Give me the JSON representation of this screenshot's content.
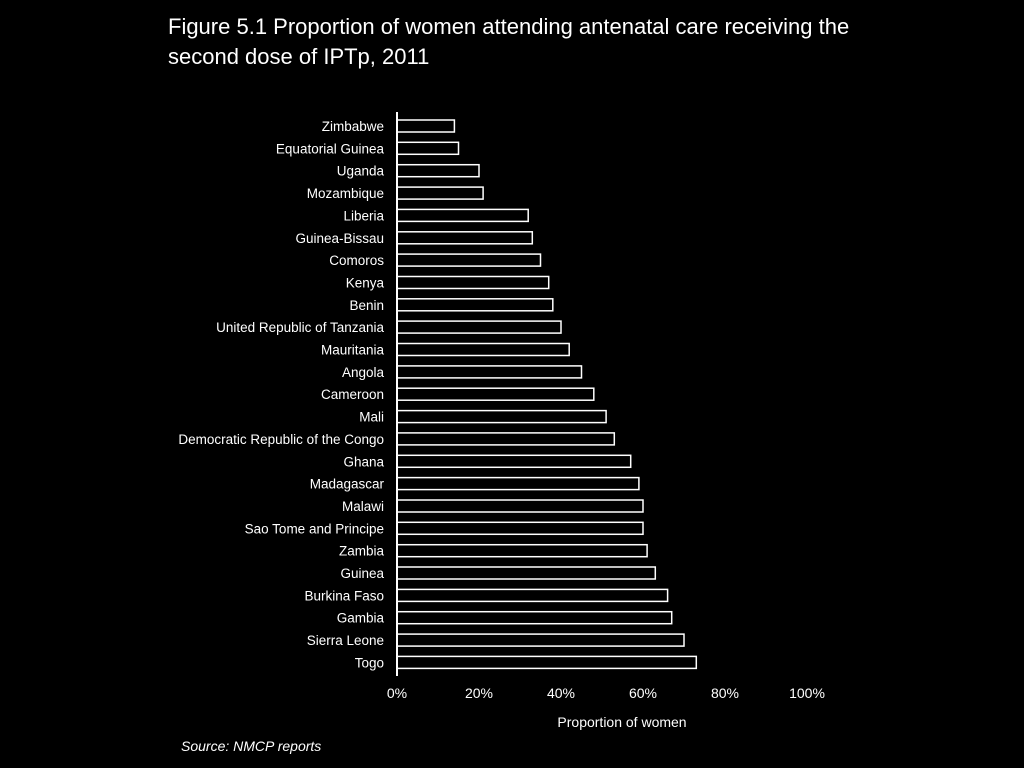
{
  "chart_data": {
    "type": "bar",
    "orientation": "horizontal",
    "title": "Figure 5.1 Proportion of women attending antenatal care receiving the second dose of IPTp, 2011",
    "categories": [
      "Zimbabwe",
      "Equatorial Guinea",
      "Uganda",
      "Mozambique",
      "Liberia",
      "Guinea-Bissau",
      "Comoros",
      "Kenya",
      "Benin",
      "United Republic of Tanzania",
      "Mauritania",
      "Angola",
      "Cameroon",
      "Mali",
      "Democratic Republic of the Congo",
      "Ghana",
      "Madagascar",
      "Malawi",
      "Sao Tome and Principe",
      "Zambia",
      "Guinea",
      "Burkina Faso",
      "Gambia",
      "Sierra Leone",
      "Togo"
    ],
    "values": [
      14,
      15,
      20,
      21,
      32,
      33,
      35,
      37,
      38,
      40,
      42,
      45,
      48,
      51,
      53,
      57,
      59,
      60,
      60,
      61,
      63,
      66,
      67,
      70,
      73
    ],
    "xlabel": "Proportion of women",
    "ylabel": "",
    "xlim": [
      0,
      100
    ],
    "xticks": [
      "0%",
      "20%",
      "40%",
      "60%",
      "80%",
      "100%"
    ],
    "tick_values": [
      0,
      20,
      40,
      60,
      80,
      100
    ],
    "grid": false,
    "bar_fill": "#000000",
    "bar_stroke": "#ffffff"
  },
  "source": "Source: NMCP reports"
}
